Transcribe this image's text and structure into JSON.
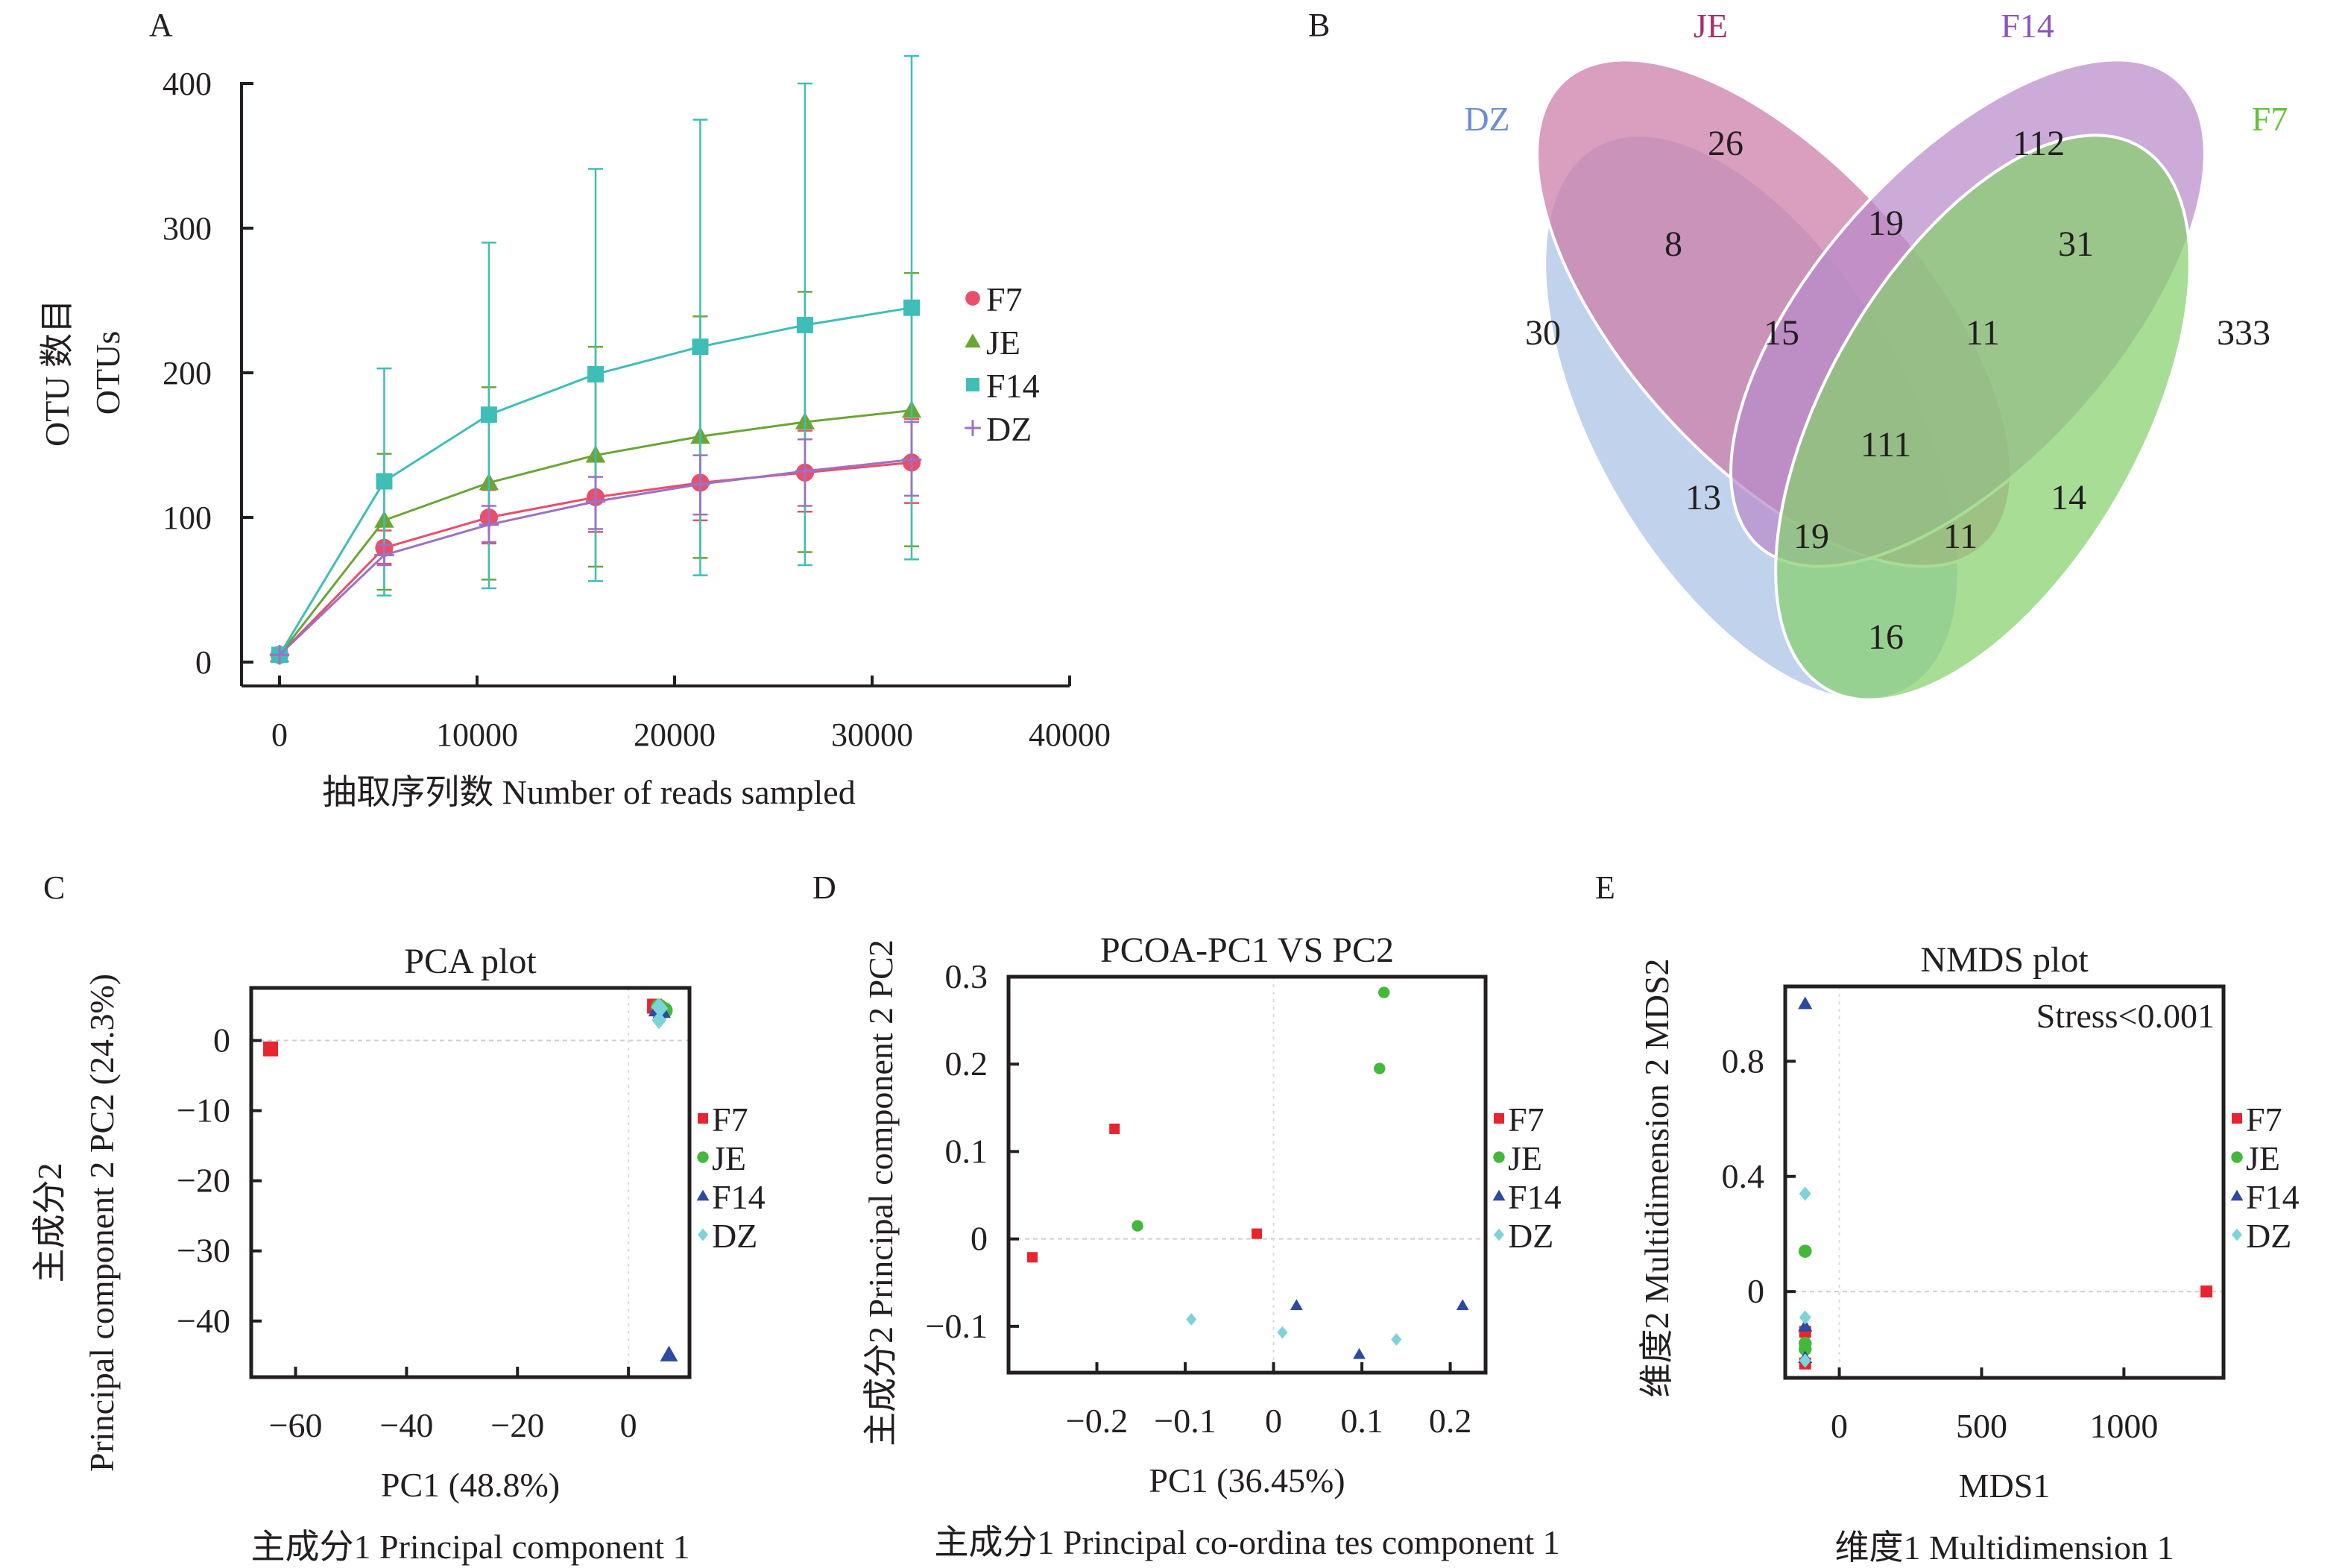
{
  "panels": {
    "A": {
      "letter": "A"
    },
    "B": {
      "letter": "B"
    },
    "C": {
      "letter": "C"
    },
    "D": {
      "letter": "D"
    },
    "E": {
      "letter": "E"
    }
  },
  "group_colors": {
    "F7": "#e94f6b",
    "JE": "#6aa636",
    "F14": "#3fbeb8",
    "DZ": "#9b72c4"
  },
  "scatter_colors": {
    "F7": "#e8242f",
    "JE": "#44b83a",
    "F14": "#2b4aa0",
    "DZ": "#7dd3d8"
  },
  "chart_data": [
    {
      "id": "A",
      "type": "line",
      "title": "",
      "xlabel": "抽取序列数 Number of reads sampled",
      "ylabel_line1": "OTU 数目",
      "ylabel_line2": "OTUs",
      "xlim": [
        0,
        40000
      ],
      "ylim": [
        0,
        400
      ],
      "xticks": [
        0,
        10000,
        20000,
        30000,
        40000
      ],
      "xtick_labels": [
        "0",
        "10000",
        "20000",
        "30000",
        "40000"
      ],
      "yticks": [
        0,
        100,
        200,
        300,
        400
      ],
      "ytick_labels": [
        "0",
        "100",
        "200",
        "300",
        "400"
      ],
      "legend": [
        "F7",
        "JE",
        "F14",
        "DZ"
      ],
      "legend_position": "right",
      "x": [
        0,
        5300,
        10600,
        16000,
        21300,
        26600,
        32000
      ],
      "series": [
        {
          "name": "F7",
          "marker": "circle",
          "values": [
            5,
            79,
            100,
            114,
            124,
            131,
            138
          ],
          "err_low": [
            5,
            68,
            82,
            90,
            98,
            104,
            110
          ],
          "err_high": [
            5,
            91,
            119,
            140,
            152,
            160,
            168
          ]
        },
        {
          "name": "JE",
          "marker": "triangle",
          "values": [
            5,
            98,
            124,
            143,
            156,
            166,
            174
          ],
          "err_low": [
            5,
            50,
            57,
            66,
            72,
            76,
            80
          ],
          "err_high": [
            5,
            144,
            190,
            218,
            239,
            256,
            269
          ]
        },
        {
          "name": "F14",
          "marker": "square",
          "values": [
            5,
            125,
            171,
            199,
            218,
            233,
            245
          ],
          "err_low": [
            5,
            46,
            51,
            56,
            60,
            67,
            71
          ],
          "err_high": [
            5,
            203,
            290,
            341,
            375,
            400,
            419
          ]
        },
        {
          "name": "DZ",
          "marker": "plus",
          "values": [
            5,
            74,
            95,
            111,
            123,
            132,
            140
          ],
          "err_low": [
            5,
            67,
            83,
            92,
            102,
            108,
            115
          ],
          "err_high": [
            5,
            81,
            108,
            128,
            143,
            154,
            166
          ]
        }
      ]
    },
    {
      "id": "B",
      "type": "venn",
      "sets": [
        "DZ",
        "JE",
        "F14",
        "F7"
      ],
      "set_label_colors": {
        "DZ": "#6a8fcf",
        "JE": "#a8306a",
        "F14": "#8b55b8",
        "F7": "#62c13a"
      },
      "regions": [
        {
          "sets": [
            "DZ"
          ],
          "value": 30
        },
        {
          "sets": [
            "JE"
          ],
          "value": 26
        },
        {
          "sets": [
            "F14"
          ],
          "value": 112
        },
        {
          "sets": [
            "F7"
          ],
          "value": 333
        },
        {
          "sets": [
            "DZ",
            "JE"
          ],
          "value": 8
        },
        {
          "sets": [
            "JE",
            "F14"
          ],
          "value": 19
        },
        {
          "sets": [
            "F14",
            "F7"
          ],
          "value": 31
        },
        {
          "sets": [
            "DZ",
            "JE",
            "F14"
          ],
          "value": 15
        },
        {
          "sets": [
            "JE",
            "F14",
            "F7"
          ],
          "value": 11
        },
        {
          "sets": [
            "DZ",
            "JE",
            "F14",
            "F7"
          ],
          "value": 111
        },
        {
          "sets": [
            "DZ",
            "F14"
          ],
          "value": 13
        },
        {
          "sets": [
            "JE",
            "F7"
          ],
          "value": 14
        },
        {
          "sets": [
            "DZ",
            "F14",
            "F7"
          ],
          "value": 19
        },
        {
          "sets": [
            "DZ",
            "JE",
            "F7"
          ],
          "value": 11
        },
        {
          "sets": [
            "DZ",
            "F7"
          ],
          "value": 16
        }
      ]
    },
    {
      "id": "C",
      "type": "scatter",
      "title": "PCA plot",
      "xlabel_line1": "PC1 (48.8%)",
      "xlabel_line2": "主成分1 Principal component 1",
      "ylabel_line1": "主成分2",
      "ylabel_line2": "Principal component 2 PC2 (24.3%)",
      "xlim": [
        -68,
        11
      ],
      "ylim": [
        -48,
        7.5
      ],
      "xticks": [
        -60,
        -40,
        -20,
        0
      ],
      "xtick_labels": [
        "−60",
        "−40",
        "−20",
        "0"
      ],
      "yticks": [
        0,
        -10,
        -20,
        -30,
        -40
      ],
      "ytick_labels": [
        "0",
        "−10",
        "−20",
        "−30",
        "−40"
      ],
      "legend": [
        "F7",
        "JE",
        "F14",
        "DZ"
      ],
      "legend_position": "right",
      "grid": "zero-lines",
      "series": [
        {
          "name": "F7",
          "marker": "square",
          "points": [
            [
              -64.5,
              -1.2
            ],
            [
              4.7,
              4.9
            ],
            [
              5.2,
              4.6
            ]
          ]
        },
        {
          "name": "JE",
          "marker": "circle",
          "points": [
            [
              6.5,
              4.3
            ],
            [
              6.0,
              4.5
            ],
            [
              5.5,
              4.8
            ]
          ]
        },
        {
          "name": "F14",
          "marker": "triangle",
          "points": [
            [
              7.3,
              -44.8
            ],
            [
              5.2,
              4.4
            ],
            [
              6.0,
              4.2
            ]
          ]
        },
        {
          "name": "DZ",
          "marker": "diamond",
          "points": [
            [
              5.5,
              2.9
            ],
            [
              5.4,
              4.8
            ],
            [
              5.8,
              4.6
            ]
          ]
        }
      ]
    },
    {
      "id": "D",
      "type": "scatter",
      "title": "PCOA-PC1 VS PC2",
      "xlabel_line1": "PC1 (36.45%)",
      "xlabel_line2": "主成分1 Principal co-ordina tes component 1",
      "ylabel_line1": "主成分2 Principal component 2 PC2",
      "xlim": [
        -0.3,
        0.24
      ],
      "ylim": [
        -0.153,
        0.3
      ],
      "xticks": [
        -0.2,
        -0.1,
        0,
        0.1,
        0.2
      ],
      "xtick_labels": [
        "−0.2",
        "−0.1",
        "0",
        "0.1",
        "0.2"
      ],
      "yticks": [
        0.3,
        0.2,
        0.1,
        0,
        -0.1
      ],
      "ytick_labels": [
        "0.3",
        "0.2",
        "0.1",
        "0",
        "−0.1"
      ],
      "legend": [
        "F7",
        "JE",
        "F14",
        "DZ"
      ],
      "legend_position": "right",
      "grid": "zero-lines",
      "series": [
        {
          "name": "F7",
          "marker": "square",
          "points": [
            [
              -0.273,
              -0.021
            ],
            [
              -0.18,
              0.126
            ],
            [
              -0.019,
              0.006
            ]
          ]
        },
        {
          "name": "JE",
          "marker": "circle",
          "points": [
            [
              -0.154,
              0.015
            ],
            [
              0.125,
              0.282
            ],
            [
              0.12,
              0.195
            ]
          ]
        },
        {
          "name": "F14",
          "marker": "triangle",
          "points": [
            [
              0.026,
              -0.076
            ],
            [
              0.097,
              -0.132
            ],
            [
              0.214,
              -0.076
            ]
          ]
        },
        {
          "name": "DZ",
          "marker": "diamond",
          "points": [
            [
              -0.093,
              -0.092
            ],
            [
              0.01,
              -0.107
            ],
            [
              0.139,
              -0.115
            ]
          ]
        }
      ]
    },
    {
      "id": "E",
      "type": "scatter",
      "title": "NMDS plot",
      "annotation": "Stress<0.001",
      "xlabel_line1": "MDS1",
      "xlabel_line2": "维度1 Multidimension 1",
      "ylabel_line1": "维度2 Multidimension 2 MDS2",
      "xlim": [
        -190,
        1350
      ],
      "ylim": [
        -0.3,
        1.06
      ],
      "xticks": [
        0,
        500,
        1000
      ],
      "xtick_labels": [
        "0",
        "500",
        "1000"
      ],
      "yticks": [
        0.8,
        0.4,
        0
      ],
      "ytick_labels": [
        "0.8",
        "0.4",
        "0"
      ],
      "legend": [
        "F7",
        "JE",
        "F14",
        "DZ"
      ],
      "legend_position": "right",
      "grid": "zero-lines",
      "series": [
        {
          "name": "F7",
          "marker": "square",
          "points": [
            [
              1290,
              0.0
            ],
            [
              -120,
              -0.14
            ],
            [
              -120,
              -0.25
            ]
          ]
        },
        {
          "name": "JE",
          "marker": "circle",
          "points": [
            [
              -120,
              0.14
            ],
            [
              -120,
              -0.18
            ],
            [
              -120,
              -0.2
            ]
          ]
        },
        {
          "name": "F14",
          "marker": "triangle",
          "points": [
            [
              -120,
              1.0
            ],
            [
              -120,
              -0.12
            ],
            [
              -120,
              -0.23
            ]
          ]
        },
        {
          "name": "DZ",
          "marker": "diamond",
          "points": [
            [
              -120,
              0.34
            ],
            [
              -120,
              -0.09
            ],
            [
              -120,
              -0.24
            ]
          ]
        }
      ]
    }
  ]
}
